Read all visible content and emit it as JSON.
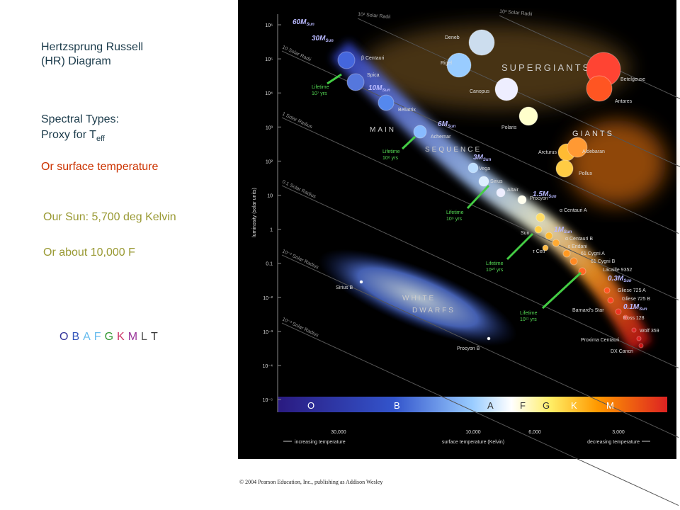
{
  "slide": {
    "title": [
      "Hertzsprung Russell",
      "(HR) Diagram"
    ],
    "spectral_heading": "Spectral Types:",
    "proxy": {
      "text": "Proxy for T",
      "subscript": "eff"
    },
    "surface": "Or surface temperature",
    "sun_temp": "Our Sun: 5,700 deg Kelvin",
    "fahrenheit": "Or about 10,000 F",
    "sequence": [
      {
        "letter": "O",
        "color": "#333399"
      },
      {
        "letter": "B",
        "color": "#3355bb"
      },
      {
        "letter": "A",
        "color": "#66bbee"
      },
      {
        "letter": "F",
        "color": "#66bbee"
      },
      {
        "letter": "G",
        "color": "#339933"
      },
      {
        "letter": "K",
        "color": "#cc3366"
      },
      {
        "letter": "M",
        "color": "#993399"
      },
      {
        "letter": "L",
        "color": "#555555"
      },
      {
        "letter": "T",
        "color": "#333333"
      }
    ]
  },
  "diagram": {
    "y_axis_label": "luminosity (solar units)",
    "y_ticks": [
      "10⁶",
      "10⁵",
      "10⁴",
      "10³",
      "10²",
      "10",
      "1",
      "0.1",
      "10⁻²",
      "10⁻³",
      "10⁻⁴",
      "10⁻⁵"
    ],
    "x_ticks": [
      "30,000",
      "10,000",
      "6,000",
      "3,000"
    ],
    "x_captions": [
      "increasing temperature",
      "surface temperature (Kelvin)",
      "decreasing temperature"
    ],
    "spectral_bar": [
      "O",
      "B",
      "A",
      "F",
      "G",
      "K",
      "M"
    ],
    "regions": [
      "SUPERGIANTS",
      "GIANTS",
      "MAIN",
      "SEQUENCE",
      "WHITE",
      "DWARFS"
    ],
    "radii": [
      "10³ Solar Radii",
      "10² Solar Radii",
      "10 Solar Radii",
      "1 Solar Radius",
      "0.1 Solar Radius",
      "10⁻² Solar Radius",
      "10⁻³ Solar Radius"
    ],
    "mass_unit": {
      "symbol": "M",
      "subscript": "Sun"
    },
    "masses": [
      "60",
      "30",
      "10",
      "6",
      "3",
      "1.5",
      "1",
      "0.3",
      "0.1"
    ],
    "lifetimes": [
      [
        "Lifetime",
        "10⁷ yrs"
      ],
      [
        "Lifetime",
        "10⁸ yrs"
      ],
      [
        "Lifetime",
        "10⁹ yrs"
      ],
      [
        "Lifetime",
        "10¹⁰ yrs"
      ],
      [
        "Lifetime",
        "10¹¹ yrs"
      ]
    ],
    "stars": [
      "Deneb",
      "Rigel",
      "Betelgeuse",
      "Antares",
      "Canopus",
      "Polaris",
      "β Centauri",
      "Spica",
      "Bellatrix",
      "Achernar",
      "Vega",
      "Sirius",
      "Altair",
      "Procyon",
      "α Centauri A",
      "Sun",
      "α Centauri B",
      "ε Eridani",
      "τ Ceti",
      "61 Cygni A",
      "61 Cygni B",
      "Lacaille 9352",
      "Gliese 725 A",
      "Gliese 725 B",
      "Barnard's Star",
      "Ross 128",
      "Wolf 359",
      "Proxima Centauri",
      "DX Cancri",
      "Sirius B",
      "Procyon B",
      "Arcturus",
      "Aldebaran",
      "Pollux"
    ]
  },
  "copyright": "© 2004 Pearson Education, Inc., publishing as Addison Wesley"
}
